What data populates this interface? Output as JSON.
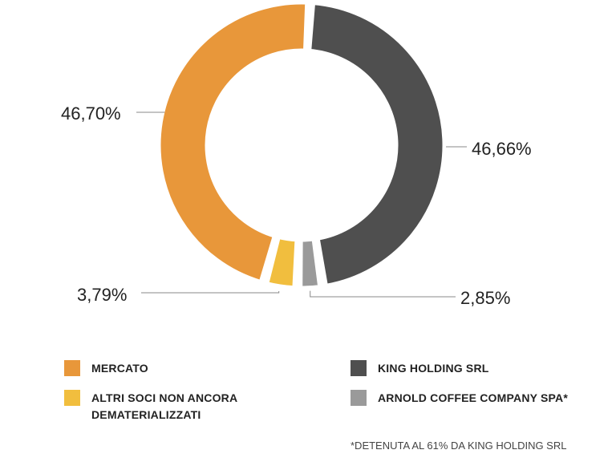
{
  "chart_data": {
    "type": "pie",
    "slices": [
      {
        "label": "MERCATO",
        "value": 46.7,
        "text": "46,70%",
        "color": "#E8973A"
      },
      {
        "label": "KING HOLDING SRL",
        "value": 46.66,
        "text": "46,66%",
        "color": "#4F4F4F"
      },
      {
        "label": "ARNOLD COFFEE COMPANY SPA*",
        "value": 2.85,
        "text": "2,85%",
        "color": "#9A9A9A"
      },
      {
        "label": "ALTRI SOCI NON ANCORA DEMATERIALIZZATI",
        "value": 3.79,
        "text": "3,79%",
        "color": "#F1BE3E"
      }
    ],
    "legend_placement": "bottom"
  },
  "legend": [
    {
      "label": "MERCATO",
      "color": "#E8973A"
    },
    {
      "label": "KING HOLDING SRL",
      "color": "#4F4F4F"
    },
    {
      "label": "ALTRI SOCI NON ANCORA DEMATERIALIZZATI",
      "color": "#F1BE3E"
    },
    {
      "label": "ARNOLD COFFEE COMPANY SPA*",
      "color": "#9A9A9A"
    }
  ],
  "footnote": "*DETENUTA AL 61% DA KING HOLDING SRL"
}
